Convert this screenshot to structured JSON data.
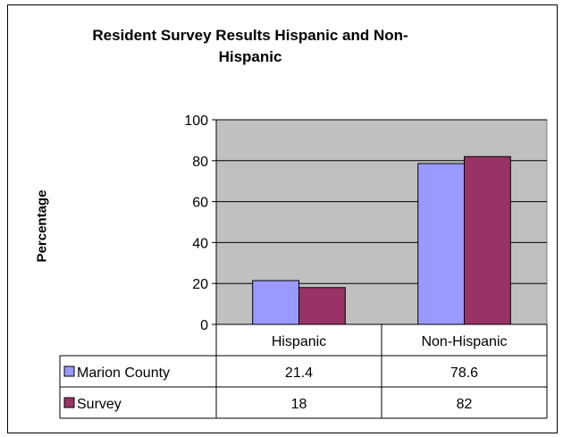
{
  "chart_data": {
    "type": "bar",
    "title": "Resident Survey Results Hispanic and Non-Hispanic",
    "ylabel": "Percentage",
    "xlabel": "",
    "categories": [
      "Hispanic",
      "Non-Hispanic"
    ],
    "series": [
      {
        "name": "Marion County",
        "values": [
          21.4,
          78.6
        ],
        "value_labels": [
          "21.4",
          "78.6"
        ],
        "color": "#9999ff"
      },
      {
        "name": "Survey",
        "values": [
          18,
          82
        ],
        "value_labels": [
          "18",
          "82"
        ],
        "color": "#993366"
      }
    ],
    "ylim": [
      0,
      100
    ],
    "yticks": [
      "0",
      "20",
      "40",
      "60",
      "80",
      "100"
    ],
    "grid": true,
    "plot_background": "#c0c0c0",
    "legend": "data-table"
  }
}
